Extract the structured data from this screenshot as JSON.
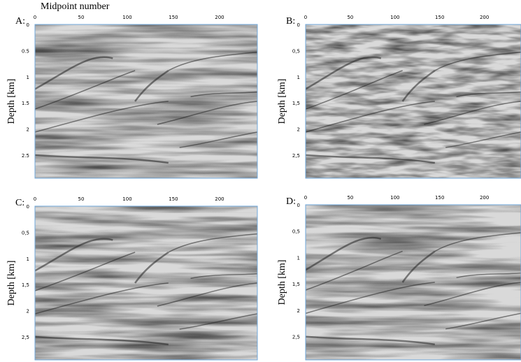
{
  "figure": {
    "x_axis_label": "Midpoint number",
    "panels": [
      {
        "label": "A:",
        "y_axis_label": "Depth [km]",
        "xticks": [
          "0",
          "50",
          "100",
          "150",
          "200"
        ],
        "yticks": [
          "0",
          "0.5",
          "1",
          "1.5",
          "2",
          "2.5"
        ]
      },
      {
        "label": "B:",
        "y_axis_label": "Depth [km]",
        "xticks": [
          "0",
          "50",
          "100",
          "150",
          "200"
        ],
        "yticks": [
          "0",
          "0,5",
          "1",
          "1,5",
          "2",
          "2,5"
        ]
      },
      {
        "label": "C:",
        "y_axis_label": "Depth [km]",
        "xticks": [
          "0",
          "50",
          "100",
          "150",
          "200"
        ],
        "yticks": [
          "0",
          "0,5",
          "1",
          "1,5",
          "2",
          "2,5"
        ]
      },
      {
        "label": "D:",
        "y_axis_label": "Depth [km]",
        "xticks": [
          "0",
          "50",
          "100",
          "150",
          "200"
        ],
        "yticks": [
          "0",
          "0,5",
          "1",
          "1,5",
          "2",
          "2,5"
        ]
      }
    ]
  }
}
